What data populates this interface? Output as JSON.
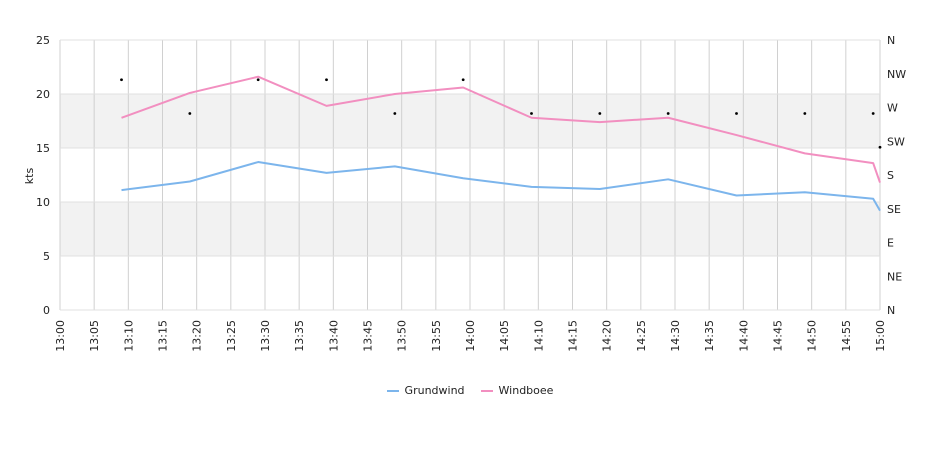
{
  "chart_data": {
    "type": "line",
    "ylabel": "kts",
    "ylim": [
      0,
      25
    ],
    "yticks": [
      "0",
      "5",
      "10",
      "15",
      "20",
      "25"
    ],
    "xlim": [
      "13:00",
      "15:00"
    ],
    "xticks": [
      "13:00",
      "13:05",
      "13:10",
      "13:15",
      "13:20",
      "13:25",
      "13:30",
      "13:35",
      "13:40",
      "13:45",
      "13:50",
      "13:55",
      "14:00",
      "14:05",
      "14:10",
      "14:15",
      "14:20",
      "14:25",
      "14:30",
      "14:35",
      "14:40",
      "14:45",
      "14:50",
      "14:55",
      "15:00"
    ],
    "direction_ticks": [
      "N",
      "NE",
      "E",
      "SE",
      "S",
      "SW",
      "W",
      "NW",
      "N"
    ],
    "grid": true,
    "legend_position": "bottom",
    "series": [
      {
        "name": "Grundwind",
        "color": "#7cb5ec",
        "x": [
          "13:09",
          "13:19",
          "13:29",
          "13:39",
          "13:49",
          "13:59",
          "14:09",
          "14:19",
          "14:29",
          "14:39",
          "14:49",
          "14:59",
          "15:00"
        ],
        "values": [
          11.1,
          11.9,
          13.7,
          12.7,
          13.3,
          12.2,
          11.4,
          11.2,
          12.1,
          10.6,
          10.9,
          10.3,
          9.2
        ]
      },
      {
        "name": "Windboee",
        "color": "#f28fc0",
        "x": [
          "13:09",
          "13:19",
          "13:29",
          "13:39",
          "13:49",
          "13:59",
          "14:09",
          "14:19",
          "14:29",
          "14:39",
          "14:49",
          "14:59",
          "15:00"
        ],
        "values": [
          17.8,
          20.1,
          21.6,
          18.9,
          20.0,
          20.6,
          17.8,
          17.4,
          17.8,
          16.2,
          14.5,
          13.6,
          11.8
        ]
      }
    ],
    "direction_points": {
      "x": [
        "13:09",
        "13:19",
        "13:29",
        "13:39",
        "13:49",
        "13:59",
        "14:09",
        "14:19",
        "14:29",
        "14:39",
        "14:49",
        "14:59",
        "15:00"
      ],
      "values": [
        "NW",
        "W",
        "NW",
        "NW",
        "W",
        "NW",
        "W",
        "W",
        "W",
        "W",
        "W",
        "W",
        "SW"
      ]
    }
  }
}
